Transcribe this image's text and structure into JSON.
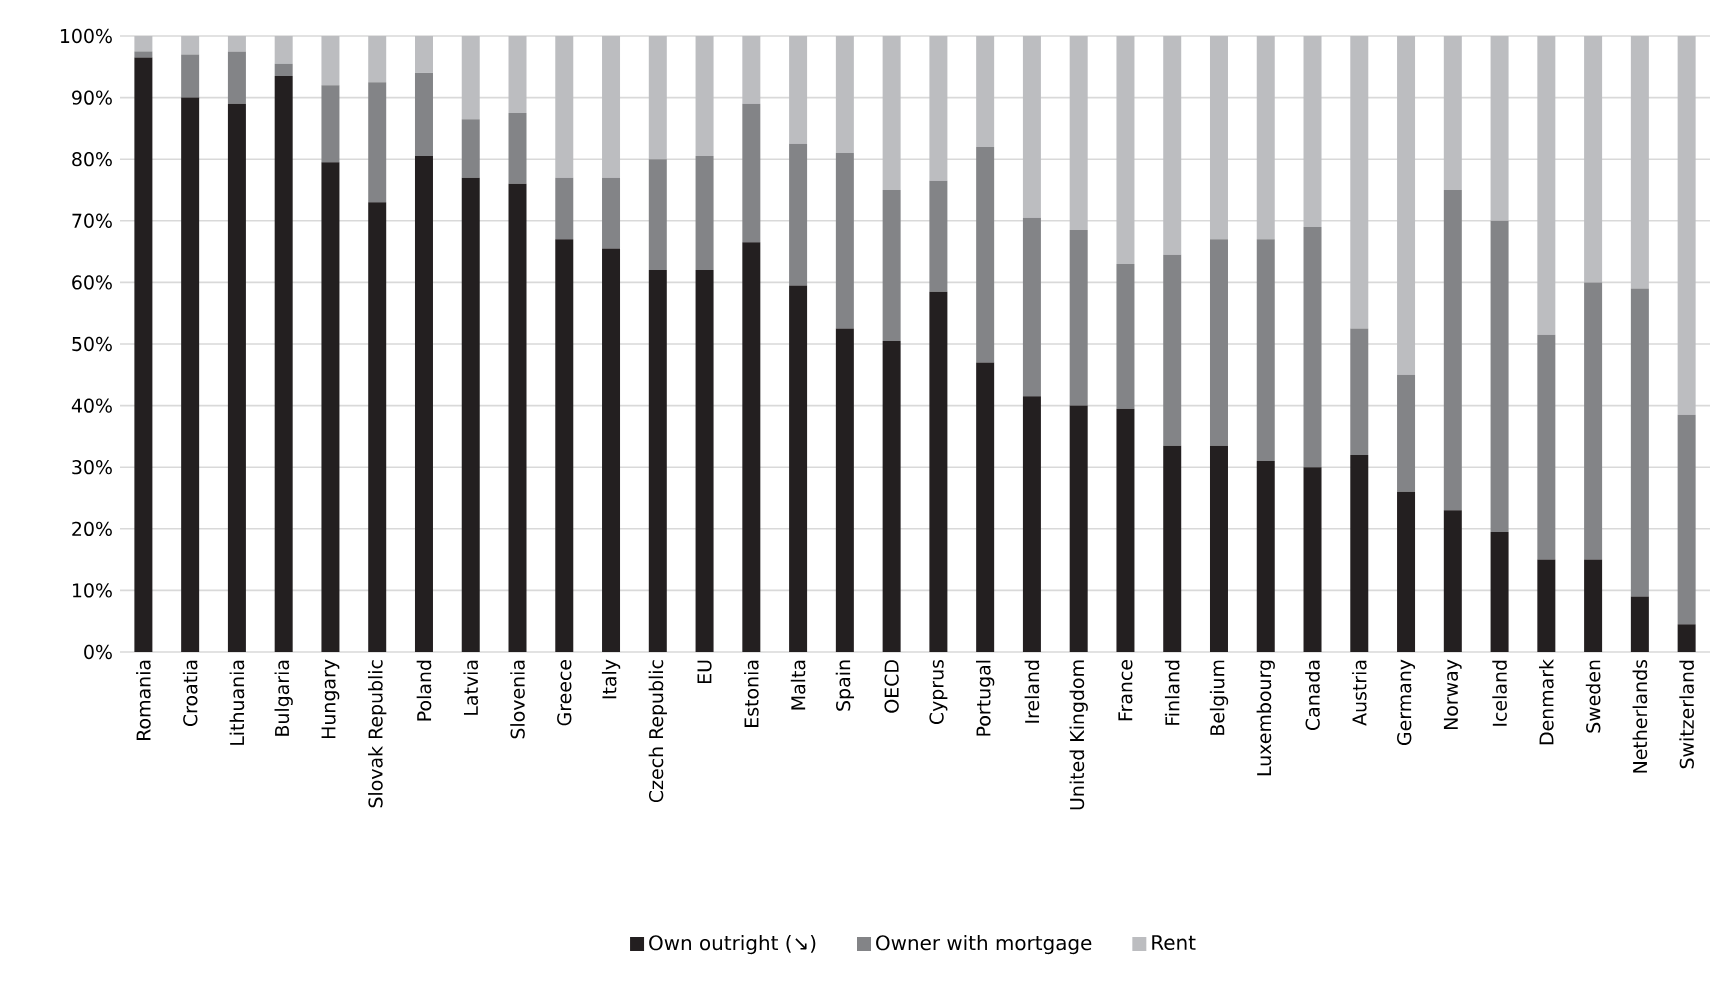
{
  "chart_data": {
    "type": "bar",
    "stacked": true,
    "categories": [
      "Romania",
      "Croatia",
      "Lithuania",
      "Bulgaria",
      "Hungary",
      "Slovak Republic",
      "Poland",
      "Latvia",
      "Slovenia",
      "Greece",
      "Italy",
      "Czech Republic",
      "EU",
      "Estonia",
      "Malta",
      "Spain",
      "OECD",
      "Cyprus",
      "Portugal",
      "Ireland",
      "United Kingdom",
      "France",
      "Finland",
      "Belgium",
      "Luxembourg",
      "Canada",
      "Austria",
      "Germany",
      "Norway",
      "Iceland",
      "Denmark",
      "Sweden",
      "Netherlands",
      "Switzerland"
    ],
    "series": [
      {
        "name": "Own outright (↘)",
        "color": "#231f20",
        "values": [
          96.5,
          90,
          89,
          93.5,
          79.5,
          73,
          80.5,
          77,
          76,
          67,
          65.5,
          62,
          62,
          66.5,
          59.5,
          52.5,
          50.5,
          58.5,
          47,
          41.5,
          40,
          39.5,
          33.5,
          33.5,
          31,
          30,
          32,
          26,
          23,
          19.5,
          15,
          15,
          9,
          4.5
        ]
      },
      {
        "name": "Owner with mortgage",
        "color": "#838487",
        "values": [
          1,
          7,
          8.5,
          2,
          12.5,
          19.5,
          13.5,
          9.5,
          11.5,
          10,
          11.5,
          18,
          18.5,
          22.5,
          23,
          28.5,
          24.5,
          18,
          35,
          29,
          28.5,
          23.5,
          31,
          33.5,
          36,
          39,
          20.5,
          19,
          52,
          50.5,
          36.5,
          45,
          50,
          34
        ]
      },
      {
        "name": "Rent",
        "color": "#bcbdc0",
        "values": [
          2.5,
          3,
          2.5,
          4.5,
          8,
          7.5,
          6,
          13.5,
          12.5,
          23,
          23,
          20,
          19.5,
          11,
          17.5,
          19,
          25,
          23.5,
          18,
          29.5,
          31.5,
          37,
          35.5,
          33,
          33,
          31,
          47.5,
          55,
          25,
          30,
          48.5,
          40,
          41,
          61.5
        ]
      }
    ],
    "ylim": [
      0,
      100
    ],
    "yticks": [
      {
        "value": 0,
        "label": "0%"
      },
      {
        "value": 10,
        "label": "10%"
      },
      {
        "value": 20,
        "label": "20%"
      },
      {
        "value": 30,
        "label": "30%"
      },
      {
        "value": 40,
        "label": "40%"
      },
      {
        "value": 50,
        "label": "50%"
      },
      {
        "value": 60,
        "label": "60%"
      },
      {
        "value": 70,
        "label": "70%"
      },
      {
        "value": 80,
        "label": "80%"
      },
      {
        "value": 90,
        "label": "90%"
      },
      {
        "value": 100,
        "label": "100%"
      }
    ],
    "grid": "y",
    "legend": "bottom"
  }
}
